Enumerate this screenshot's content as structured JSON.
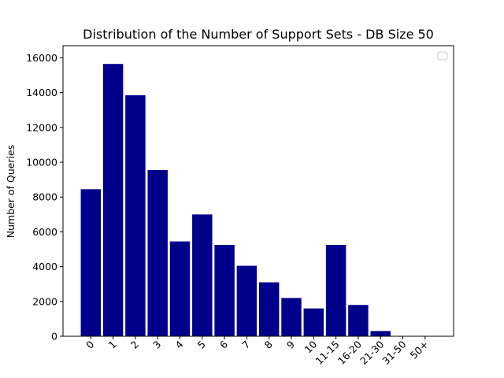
{
  "chart_data": {
    "type": "bar",
    "title": "Distribution of the Number of Support Sets - DB Size 50",
    "xlabel": "",
    "ylabel": "Number of Queries",
    "categories": [
      "0",
      "1",
      "2",
      "3",
      "4",
      "5",
      "6",
      "7",
      "8",
      "9",
      "10",
      "11-15",
      "16-20",
      "21-30",
      "31-50",
      "50+"
    ],
    "values": [
      8450,
      15650,
      13850,
      9550,
      5450,
      7000,
      5250,
      4050,
      3100,
      2200,
      1600,
      5250,
      1800,
      300,
      0,
      0
    ],
    "ylim": [
      0,
      16700
    ],
    "yticks": [
      0,
      2000,
      4000,
      6000,
      8000,
      10000,
      12000,
      14000,
      16000
    ],
    "bar_color": "#00008b",
    "grid": false,
    "legend": {
      "placement": "top-right",
      "entries": []
    }
  }
}
